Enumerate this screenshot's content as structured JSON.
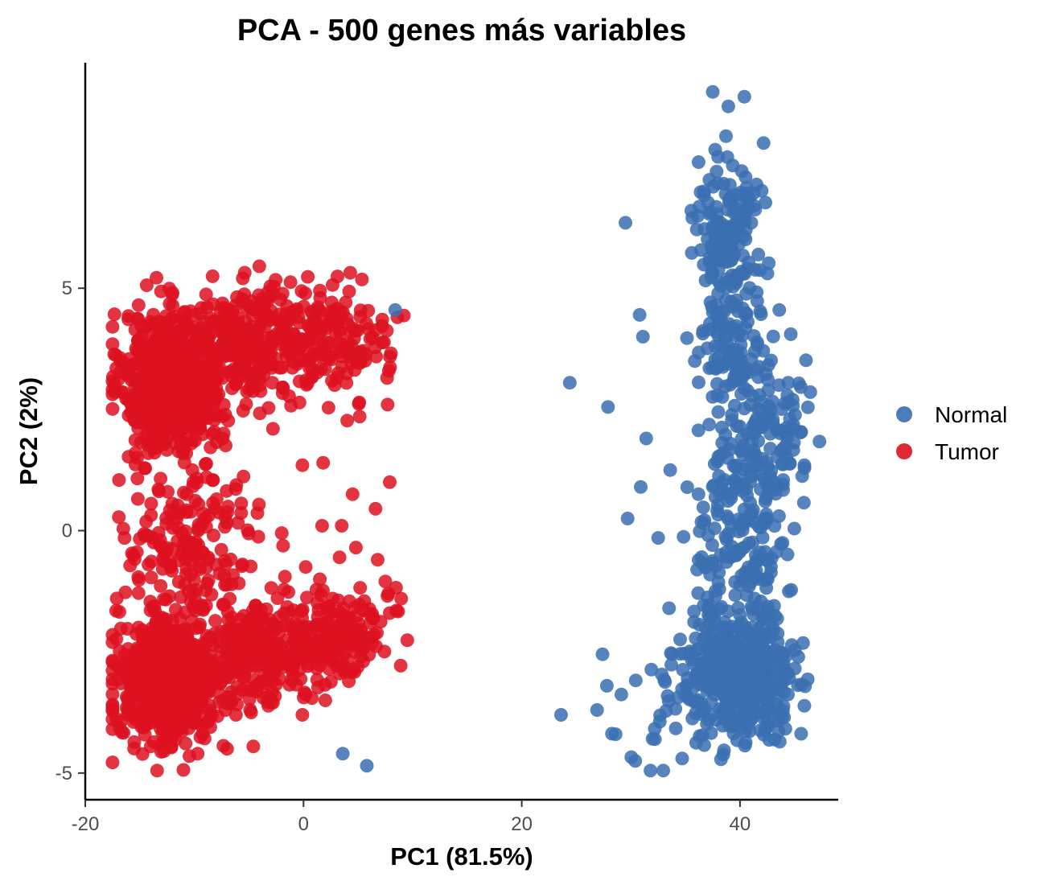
{
  "chart_data": {
    "type": "scatter",
    "title": "PCA - 500 genes más variables",
    "xlabel": "PC1 (81.5%)",
    "ylabel": "PC2 (2%)",
    "xlim": [
      -20,
      49
    ],
    "ylim": [
      -5.55,
      9.65
    ],
    "x_ticks": [
      -20,
      0,
      20,
      40
    ],
    "x_tick_labels": [
      "-20",
      "0",
      "20",
      "40"
    ],
    "y_ticks": [
      -5,
      0,
      5
    ],
    "y_tick_labels": [
      "-5",
      "0",
      "5"
    ],
    "grid": false,
    "legend_position": "right",
    "series": [
      {
        "name": "Normal",
        "color": "#3a6fb0",
        "points": [
          [
            37.5,
            9.05
          ],
          [
            40.4,
            8.95
          ],
          [
            29.5,
            6.35
          ],
          [
            24.4,
            3.05
          ],
          [
            27.9,
            2.55
          ],
          [
            30.8,
            4.45
          ],
          [
            31.1,
            4.0
          ],
          [
            31.4,
            1.9
          ],
          [
            30.9,
            0.9
          ],
          [
            29.7,
            0.25
          ],
          [
            32.5,
            -0.15
          ],
          [
            33.6,
            1.25
          ],
          [
            27.4,
            -2.55
          ],
          [
            27.8,
            -3.2
          ],
          [
            26.9,
            -3.7
          ],
          [
            23.6,
            -3.8
          ],
          [
            28.6,
            -4.2
          ],
          [
            30.4,
            -4.75
          ],
          [
            32.2,
            -4.3
          ],
          [
            34.7,
            -4.7
          ],
          [
            3.6,
            -4.6
          ],
          [
            5.8,
            -4.85
          ],
          [
            8.4,
            4.55
          ],
          [
            36.2,
            -2.45
          ],
          [
            36.7,
            0.15
          ],
          [
            38.2,
            1.55
          ],
          [
            42.4,
            0.25
          ],
          [
            45.9,
            1.35
          ],
          [
            43.6,
            4.55
          ],
          [
            36.2,
            7.6
          ]
        ],
        "clusters": [
          {
            "cx": 38.7,
            "sx": 1.5,
            "cy": 6.0,
            "sy": 1.0,
            "n": 170
          },
          {
            "cx": 39.6,
            "sx": 1.6,
            "cy": 3.7,
            "sy": 0.55,
            "n": 90
          },
          {
            "cx": 42.0,
            "sx": 2.1,
            "cy": 1.8,
            "sy": 0.75,
            "n": 140
          },
          {
            "cx": 39.5,
            "sx": 2.2,
            "cy": -0.5,
            "sy": 1.0,
            "n": 170
          },
          {
            "cx": 40.5,
            "sx": 2.4,
            "cy": -3.0,
            "sy": 0.55,
            "n": 420
          },
          {
            "cx": 36.0,
            "sx": 3.4,
            "cy": -3.4,
            "sy": 0.65,
            "n": 60
          }
        ]
      },
      {
        "name": "Tumor",
        "color": "#dd1020",
        "points": [
          [
            8.6,
            4.4
          ],
          [
            7.7,
            2.6
          ],
          [
            7.9,
            1.0
          ],
          [
            6.6,
            0.45
          ],
          [
            4.5,
            0.75
          ],
          [
            1.8,
            1.4
          ],
          [
            -0.1,
            1.35
          ],
          [
            -2.8,
            2.1
          ],
          [
            3.5,
            0.1
          ],
          [
            1.7,
            0.1
          ],
          [
            3.3,
            -0.55
          ],
          [
            4.8,
            -0.35
          ],
          [
            6.8,
            -0.6
          ],
          [
            7.5,
            -1.05
          ],
          [
            -2.0,
            -0.05
          ],
          [
            0.2,
            -0.75
          ],
          [
            -1.7,
            -0.95
          ],
          [
            8.5,
            -1.65
          ],
          [
            7.9,
            -1.7
          ],
          [
            -9.2,
            0.35
          ],
          [
            -13.3,
            0.85
          ],
          [
            -16.4,
            -0.15
          ],
          [
            -15.4,
            1.6
          ],
          [
            -10.7,
            0.75
          ],
          [
            -0.1,
            -3.8
          ],
          [
            2.0,
            -3.5
          ],
          [
            -2.8,
            -3.55
          ],
          [
            -4.8,
            -3.75
          ],
          [
            -4.6,
            -4.45
          ],
          [
            -9.7,
            -4.6
          ],
          [
            -12.8,
            -4.55
          ],
          [
            -14.0,
            -4.45
          ],
          [
            -7.0,
            -4.5
          ],
          [
            1.5,
            4.95
          ]
        ],
        "clusters": [
          {
            "cx": -12.0,
            "sx": 2.2,
            "cy": 3.1,
            "sy": 0.7,
            "n": 750
          },
          {
            "cx": -5.0,
            "sx": 2.6,
            "cy": 3.9,
            "sy": 0.55,
            "n": 260
          },
          {
            "cx": 2.5,
            "sx": 2.6,
            "cy": 3.9,
            "sy": 0.6,
            "n": 170
          },
          {
            "cx": -10.5,
            "sx": 3.3,
            "cy": -0.3,
            "sy": 0.85,
            "n": 190
          },
          {
            "cx": -12.3,
            "sx": 2.3,
            "cy": -3.1,
            "sy": 0.6,
            "n": 800
          },
          {
            "cx": -4.5,
            "sx": 3.0,
            "cy": -2.6,
            "sy": 0.5,
            "n": 270
          },
          {
            "cx": 3.0,
            "sx": 2.5,
            "cy": -2.1,
            "sy": 0.45,
            "n": 190
          }
        ]
      }
    ]
  }
}
